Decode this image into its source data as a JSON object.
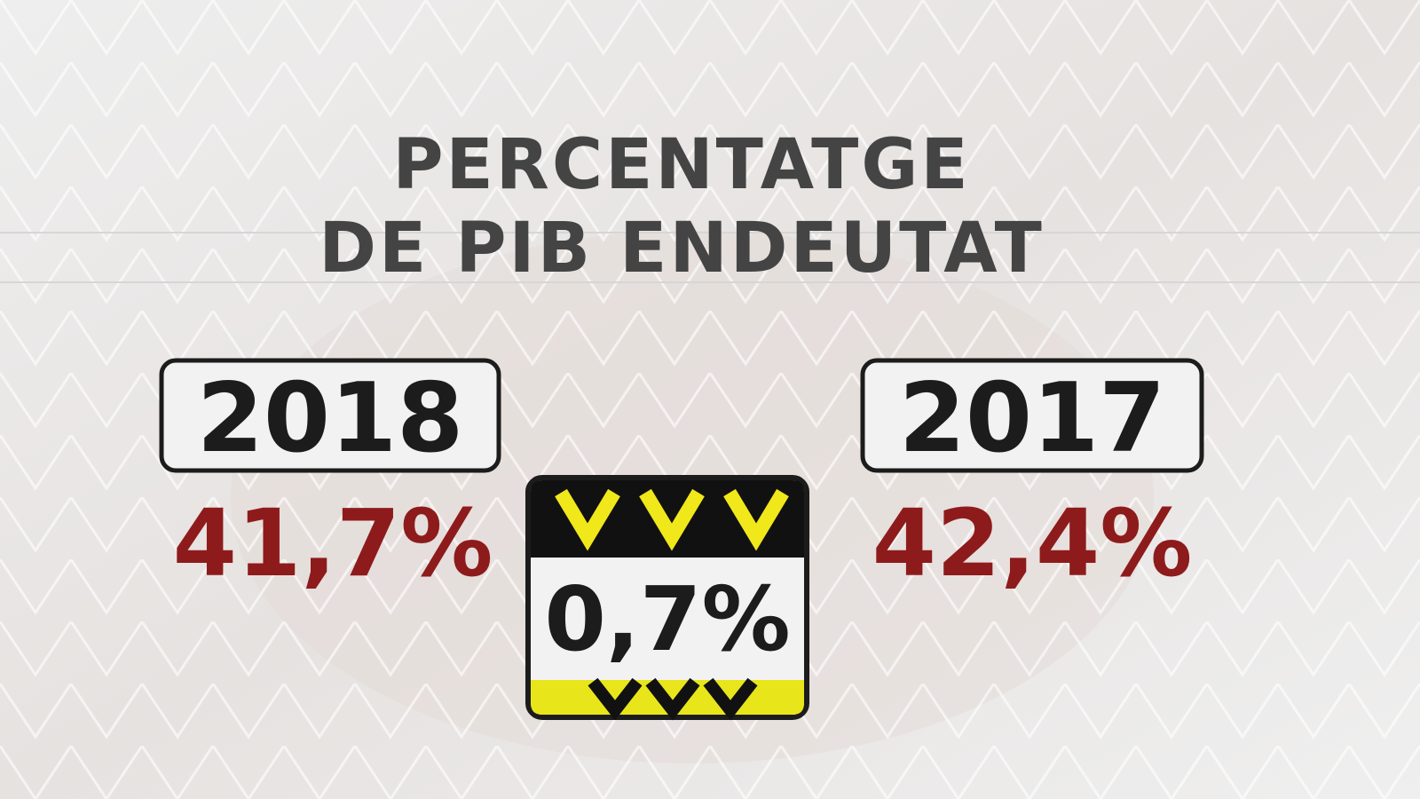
{
  "title": {
    "line1": "PERCENTATGE",
    "line2": "DE PIB ENDEUTAT"
  },
  "left": {
    "year": "2018",
    "value": "41,7%"
  },
  "right": {
    "year": "2017",
    "value": "42,4%"
  },
  "difference": "0,7%"
}
